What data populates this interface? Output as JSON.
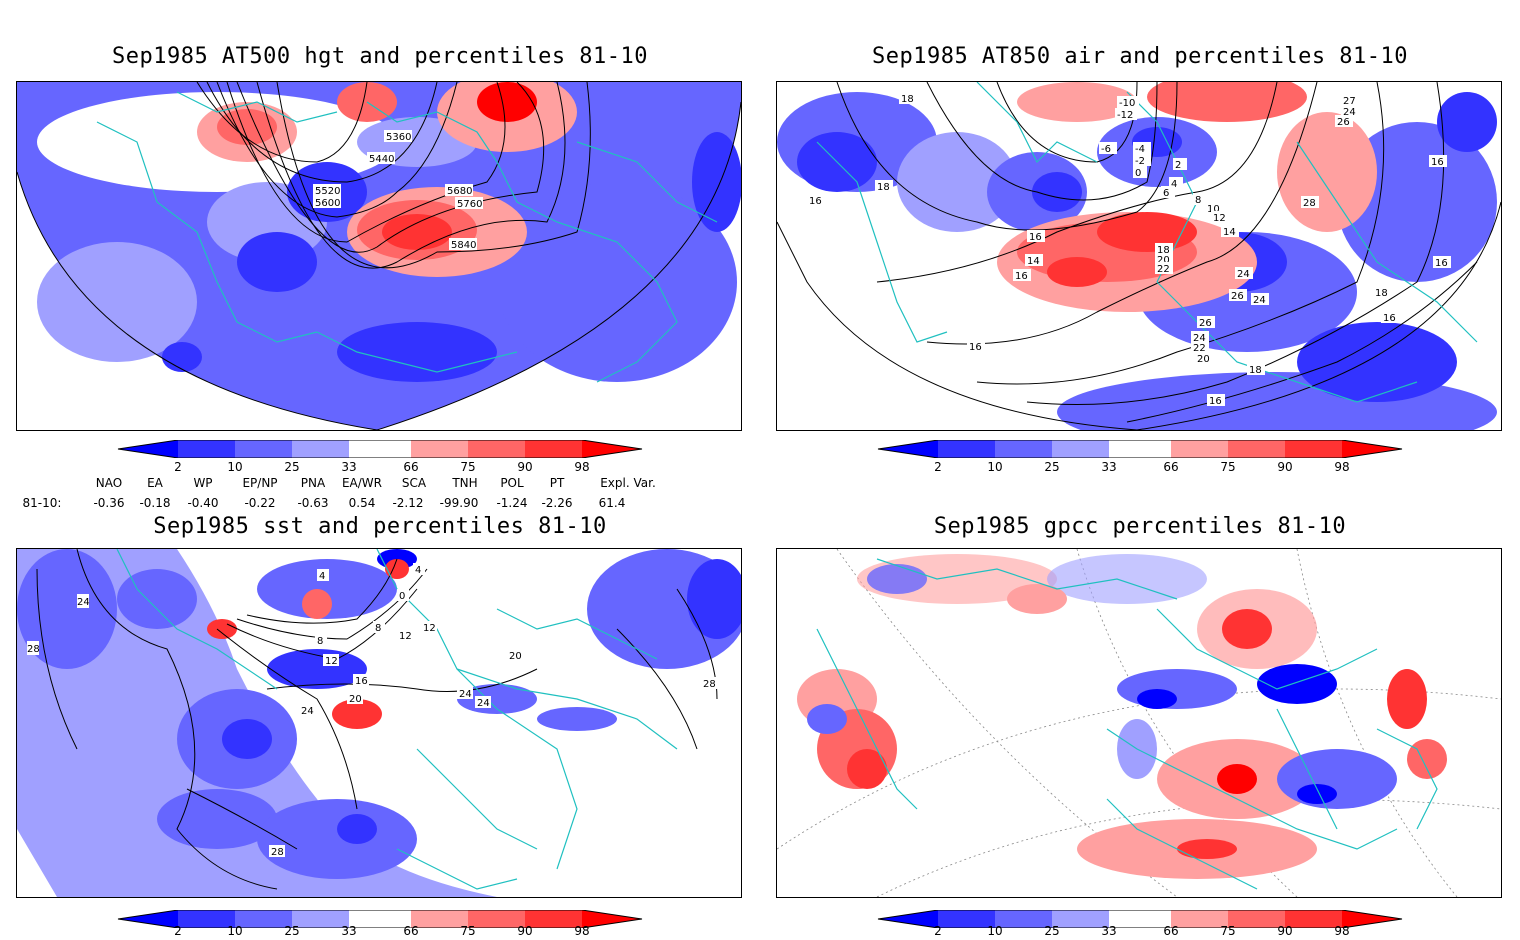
{
  "panels": [
    {
      "title": "Sep1985 AT500 hgt and percentiles 81-10",
      "contour_labels": [
        "5360",
        "5440",
        "5520",
        "5600",
        "5680",
        "5760",
        "5840"
      ]
    },
    {
      "title": "Sep1985 AT850 air and percentiles 81-10",
      "contour_labels": [
        "18",
        "16",
        "18",
        "-10",
        "-12",
        "-6",
        "-4",
        "-2",
        "0",
        "2",
        "4",
        "6",
        "8",
        "10",
        "12",
        "14",
        "16",
        "18",
        "20",
        "22",
        "24",
        "26",
        "27",
        "24",
        "26",
        "28",
        "16",
        "16",
        "14",
        "16",
        "18",
        "16",
        "16",
        "24",
        "26",
        "24",
        "22",
        "20",
        "18",
        "16"
      ]
    },
    {
      "title": "Sep1985 sst and percentiles 81-10",
      "contour_labels": [
        "24",
        "28",
        "4",
        "0",
        "4",
        "8",
        "8",
        "12",
        "12",
        "16",
        "20",
        "24",
        "24",
        "24",
        "20",
        "28",
        "28",
        "12"
      ]
    },
    {
      "title": "Sep1985 gpcc percentiles 81-10",
      "contour_labels": []
    }
  ],
  "colorbar": {
    "labels": [
      "2",
      "10",
      "25",
      "33",
      "66",
      "75",
      "90",
      "98"
    ],
    "colors": [
      "#0000ff",
      "#3333ff",
      "#6666ff",
      "#a0a0ff",
      "#ffffff",
      "#ffa0a0",
      "#ff6666",
      "#ff3333",
      "#ff0000"
    ]
  },
  "indices": {
    "row_label": "81-10:",
    "names": [
      "NAO",
      "EA",
      "WP",
      "EP/NP",
      "PNA",
      "EA/WR",
      "SCA",
      "TNH",
      "POL",
      "PT",
      "Expl. Var."
    ],
    "values": [
      "-0.36",
      "-0.18",
      "-0.40",
      "-0.22",
      "-0.63",
      "0.54",
      "-2.12",
      "-99.90",
      "-1.24",
      "-2.26",
      "61.4"
    ]
  },
  "map_colors": {
    "land_border": "#20c0c0",
    "contour": "#000000",
    "grid": "#888888"
  }
}
